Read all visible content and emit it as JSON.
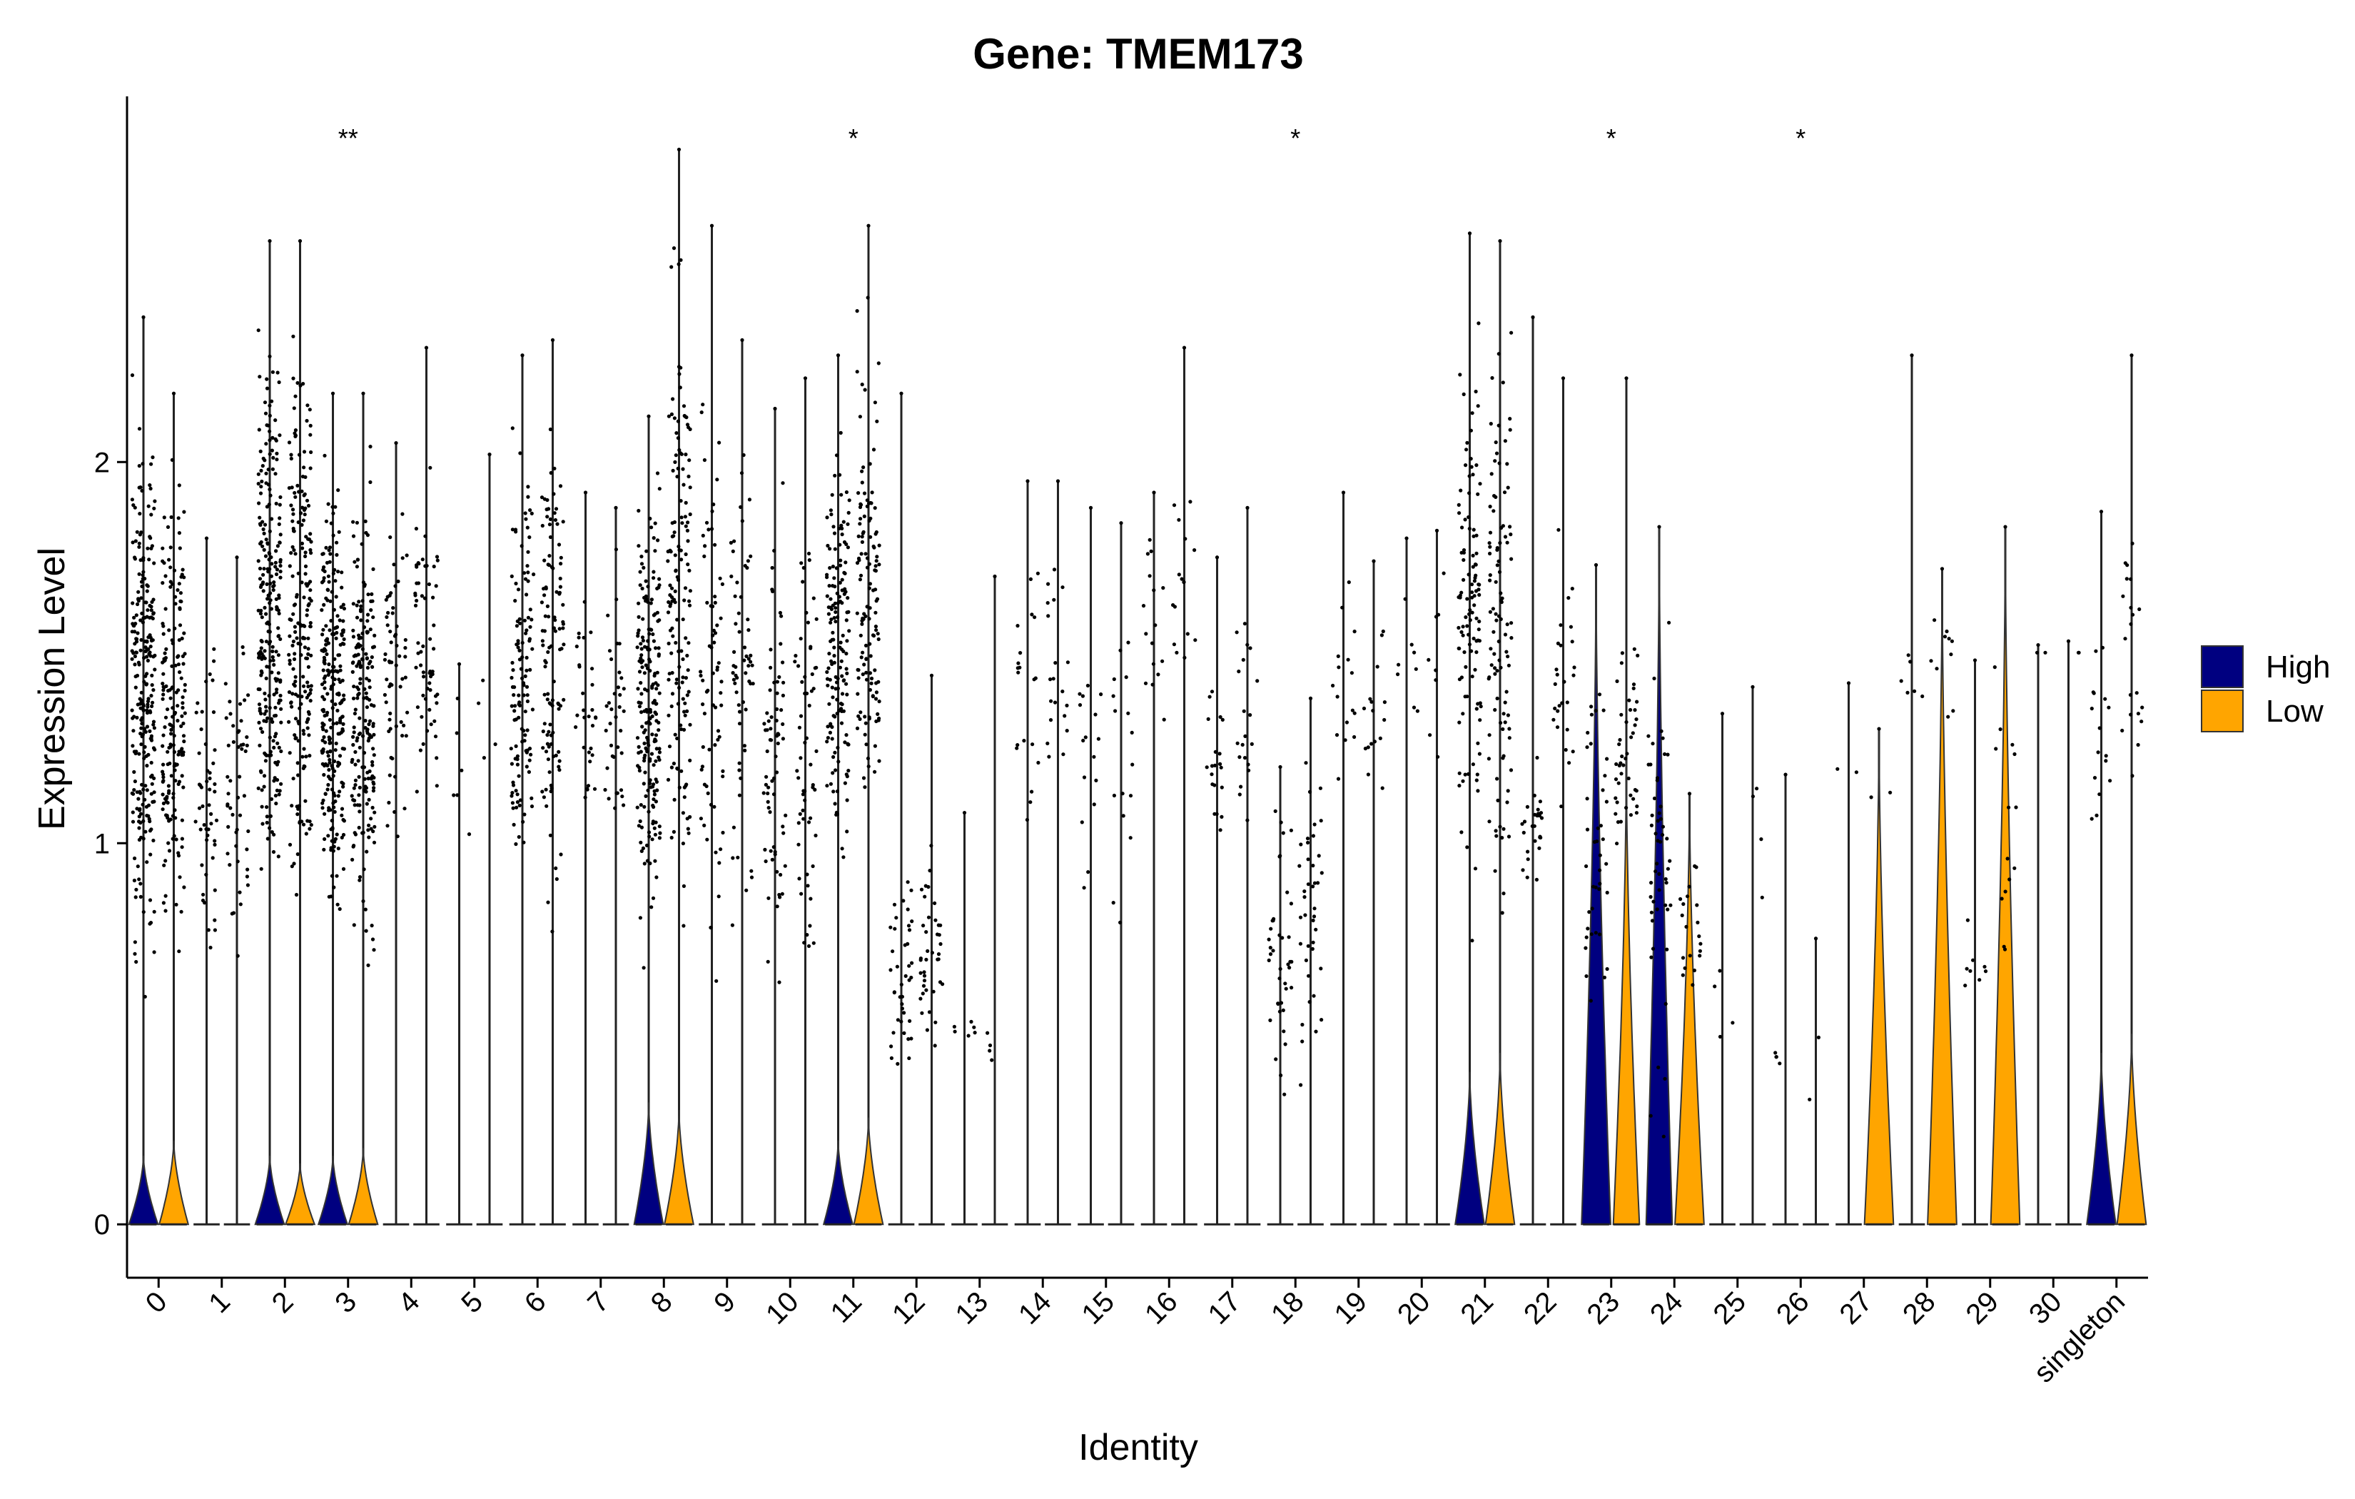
{
  "chart_data": {
    "type": "violin",
    "title": "Gene: TMEM173",
    "xlabel": "Identity",
    "ylabel": "Expression Level",
    "ylim": [
      -0.14,
      2.95
    ],
    "yticks": [
      0,
      1,
      2
    ],
    "categories": [
      "0",
      "1",
      "2",
      "3",
      "4",
      "5",
      "6",
      "7",
      "8",
      "9",
      "10",
      "11",
      "12",
      "13",
      "14",
      "15",
      "16",
      "17",
      "18",
      "19",
      "20",
      "21",
      "22",
      "23",
      "24",
      "25",
      "26",
      "27",
      "28",
      "29",
      "30",
      "singleton"
    ],
    "series": [
      {
        "name": "High",
        "color": "#000080",
        "max": [
          2.38,
          1.8,
          2.58,
          2.18,
          2.05,
          1.47,
          2.28,
          1.92,
          2.12,
          2.62,
          2.14,
          2.28,
          2.18,
          1.08,
          1.95,
          1.88,
          1.92,
          1.75,
          1.2,
          1.92,
          1.8,
          2.6,
          2.38,
          1.73,
          1.83,
          1.34,
          1.18,
          1.42,
          2.28,
          1.48,
          1.52,
          1.87
        ],
        "violin_peak": [
          0.18,
          0,
          0.18,
          0.18,
          0,
          0,
          0,
          0,
          0.32,
          0,
          0,
          0.22,
          0,
          0,
          0,
          0,
          0,
          0,
          0,
          0,
          0,
          0.4,
          0,
          1.73,
          1.83,
          0,
          0,
          0,
          0,
          0,
          0,
          0.45
        ],
        "violin_width": [
          0.5,
          0,
          0.5,
          0.5,
          0,
          0,
          0,
          0,
          0.5,
          0,
          0,
          0.5,
          0,
          0,
          0,
          0,
          0,
          0,
          0,
          0,
          0,
          0.5,
          0,
          0.5,
          0.45,
          0,
          0,
          0,
          0,
          0,
          0,
          0.5
        ],
        "point_density": [
          260,
          50,
          260,
          260,
          60,
          6,
          120,
          30,
          200,
          70,
          70,
          160,
          40,
          6,
          20,
          16,
          16,
          20,
          40,
          16,
          8,
          110,
          26,
          40,
          50,
          4,
          4,
          2,
          6,
          8,
          2,
          16
        ],
        "point_range": [
          [
            0.5,
            2.3
          ],
          [
            0.55,
            1.7
          ],
          [
            0.6,
            2.5
          ],
          [
            0.6,
            2.15
          ],
          [
            0.9,
            2.0
          ],
          [
            0.8,
            1.47
          ],
          [
            0.75,
            2.2
          ],
          [
            0.8,
            1.9
          ],
          [
            0.6,
            2.1
          ],
          [
            0.5,
            2.5
          ],
          [
            0.35,
            2.1
          ],
          [
            0.8,
            2.25
          ],
          [
            0.25,
            1.1
          ],
          [
            0.4,
            0.6
          ],
          [
            0.85,
            1.95
          ],
          [
            0.6,
            1.85
          ],
          [
            1.2,
            1.9
          ],
          [
            0.8,
            1.6
          ],
          [
            0.28,
            1.2
          ],
          [
            1.0,
            1.9
          ],
          [
            1.05,
            1.8
          ],
          [
            0.7,
            2.5
          ],
          [
            0.8,
            1.3
          ],
          [
            0.4,
            1.7
          ],
          [
            0.1,
            1.8
          ],
          [
            0.3,
            1.3
          ],
          [
            0.4,
            0.5
          ],
          [
            1.1,
            1.4
          ],
          [
            1.3,
            1.6
          ],
          [
            0.5,
            0.85
          ],
          [
            1.5,
            1.5
          ],
          [
            0.8,
            1.8
          ]
        ]
      },
      {
        "name": "Low",
        "color": "#FFA500",
        "max": [
          2.18,
          1.75,
          2.58,
          2.18,
          2.3,
          2.02,
          2.32,
          1.88,
          2.82,
          2.32,
          2.22,
          2.62,
          1.44,
          1.7,
          1.95,
          1.84,
          2.3,
          1.88,
          1.38,
          1.74,
          1.82,
          2.58,
          2.22,
          2.22,
          1.13,
          1.41,
          0.75,
          1.3,
          1.72,
          1.83,
          1.53,
          2.28
        ],
        "violin_peak": [
          0.22,
          0,
          0.16,
          0.2,
          0,
          0,
          0,
          0,
          0.3,
          0,
          0,
          0.28,
          0,
          0,
          0,
          0,
          0,
          0,
          0,
          0,
          0,
          0.45,
          0,
          1.22,
          1.13,
          0,
          0,
          1.3,
          1.72,
          1.83,
          0,
          0.5
        ],
        "violin_width": [
          0.5,
          0,
          0.5,
          0.5,
          0,
          0,
          0,
          0,
          0.5,
          0,
          0,
          0.5,
          0,
          0,
          0,
          0,
          0,
          0,
          0,
          0,
          0,
          0.5,
          0,
          0.45,
          0.5,
          0,
          0,
          0.5,
          0.5,
          0.5,
          0,
          0.5
        ],
        "point_density": [
          180,
          50,
          200,
          200,
          60,
          4,
          110,
          36,
          150,
          60,
          60,
          130,
          40,
          4,
          20,
          16,
          16,
          20,
          40,
          16,
          8,
          100,
          26,
          44,
          20,
          4,
          2,
          2,
          10,
          14,
          2,
          20
        ],
        "point_range": [
          [
            0.6,
            2.1
          ],
          [
            0.6,
            1.7
          ],
          [
            0.7,
            2.5
          ],
          [
            0.6,
            2.1
          ],
          [
            0.85,
            2.2
          ],
          [
            0.5,
            2.0
          ],
          [
            0.7,
            2.3
          ],
          [
            0.75,
            1.8
          ],
          [
            0.6,
            2.75
          ],
          [
            0.5,
            2.3
          ],
          [
            0.35,
            2.2
          ],
          [
            0.8,
            2.5
          ],
          [
            0.35,
            1.1
          ],
          [
            0.35,
            0.6
          ],
          [
            0.9,
            1.9
          ],
          [
            0.6,
            1.8
          ],
          [
            1.2,
            2.2
          ],
          [
            0.6,
            1.85
          ],
          [
            0.3,
            1.35
          ],
          [
            1.0,
            1.7
          ],
          [
            1.05,
            1.8
          ],
          [
            0.65,
            2.5
          ],
          [
            0.85,
            2.0
          ],
          [
            0.85,
            1.6
          ],
          [
            0.5,
            1.1
          ],
          [
            0.5,
            1.4
          ],
          [
            0.2,
            0.7
          ],
          [
            1.0,
            1.3
          ],
          [
            1.2,
            1.7
          ],
          [
            0.3,
            1.8
          ],
          [
            1.5,
            1.5
          ],
          [
            0.8,
            2.2
          ]
        ]
      }
    ],
    "significance": [
      {
        "category": "3",
        "label": "**"
      },
      {
        "category": "11",
        "label": "*"
      },
      {
        "category": "18",
        "label": "*"
      },
      {
        "category": "23",
        "label": "*"
      },
      {
        "category": "26",
        "label": "*"
      }
    ],
    "legend": {
      "position": "right",
      "entries": [
        "High",
        "Low"
      ]
    },
    "grid": false
  }
}
